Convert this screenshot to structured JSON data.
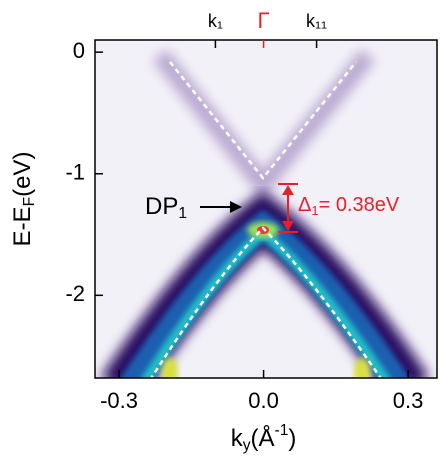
{
  "chart_data": {
    "type": "spectral-image",
    "xlim": [
      -0.35,
      0.36
    ],
    "ylim": [
      -2.68,
      0.1
    ],
    "xticks": [
      -0.3,
      {
        "value": 0,
        "label": "0.0"
      },
      0.3
    ],
    "yticks": [
      0,
      -1,
      -2
    ],
    "top_ticks": [
      {
        "value": -0.1,
        "label": "k₁"
      },
      {
        "value": 0,
        "label": "Γ"
      },
      {
        "value": 0.11,
        "label": "k₁₁"
      }
    ],
    "x_label": {
      "main": "k",
      "sub": "y",
      "unit": "(Å",
      "sup": "-1",
      "end": ")"
    },
    "y_label": {
      "main": "E-E",
      "sub": "F",
      "unit": "(eV)"
    },
    "annotations": {
      "dirac_point": {
        "main": "DP",
        "sub": "1"
      },
      "gap": {
        "main": "Δ",
        "sub": "1",
        "text": "= 0.38eV"
      }
    },
    "highlight_color": "#e8202a"
  }
}
